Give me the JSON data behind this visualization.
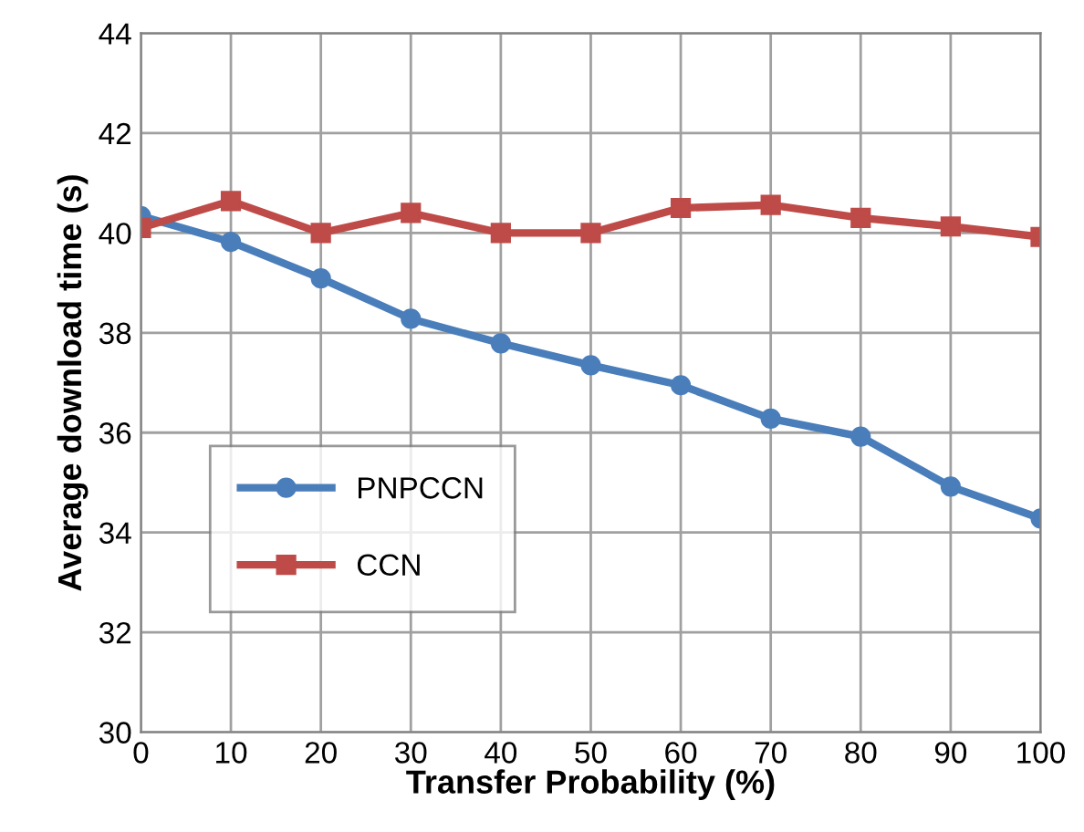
{
  "chart_data": {
    "type": "line",
    "xlabel": "Transfer Probability (%)",
    "ylabel": "Average download time (s)",
    "x": [
      0,
      10,
      20,
      30,
      40,
      50,
      60,
      70,
      80,
      90,
      100
    ],
    "series": [
      {
        "name": "PNPCCN",
        "color": "#4a7ebb",
        "marker": "circle",
        "values": [
          40.34,
          39.82,
          39.09,
          38.28,
          37.79,
          37.35,
          36.95,
          36.28,
          35.92,
          34.92,
          34.28
        ]
      },
      {
        "name": "CCN",
        "color": "#be4b48",
        "marker": "square",
        "values": [
          40.1,
          40.64,
          40.0,
          40.4,
          40.0,
          40.0,
          40.5,
          40.56,
          40.3,
          40.13,
          39.92
        ]
      }
    ],
    "xlim": [
      0,
      100
    ],
    "xticks": [
      0,
      10,
      20,
      30,
      40,
      50,
      60,
      70,
      80,
      90,
      100
    ],
    "ylim": [
      30,
      44
    ],
    "yticks": [
      30,
      32,
      34,
      36,
      38,
      40,
      42,
      44
    ],
    "grid": true,
    "legend": "bottom left",
    "line_style": "solid"
  }
}
